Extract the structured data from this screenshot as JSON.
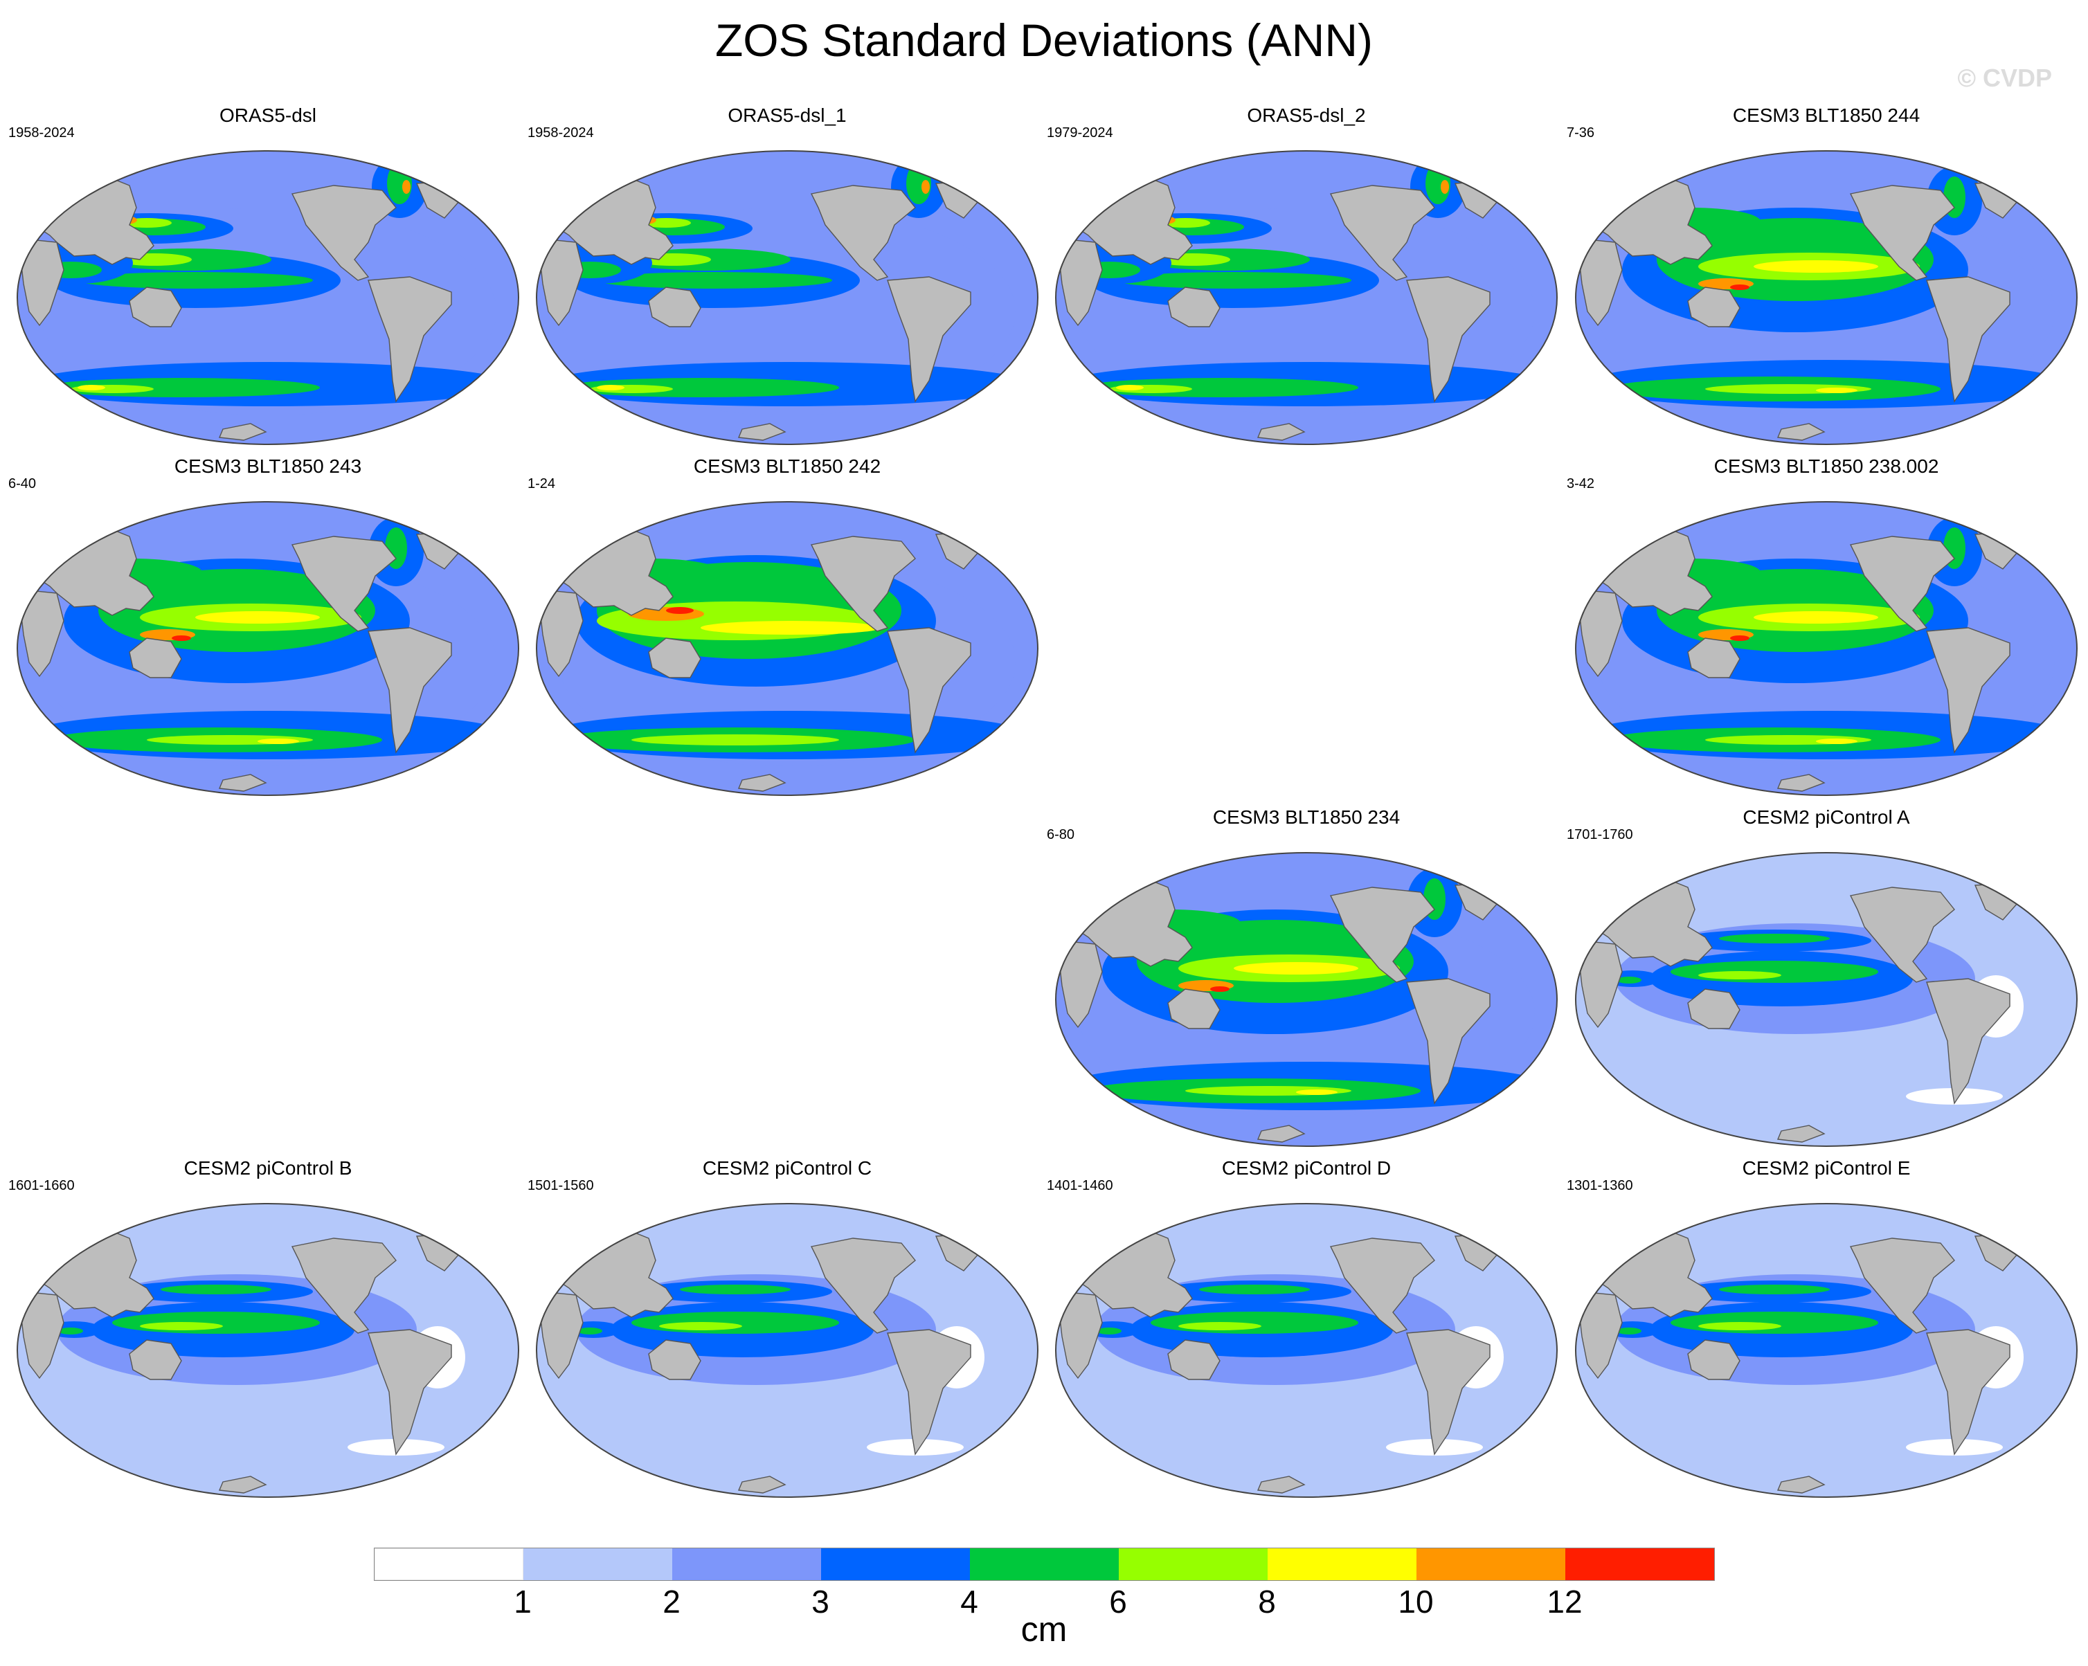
{
  "title": "ZOS Standard Deviations (ANN)",
  "watermark": "© CVDP",
  "colors": {
    "land": "#bdbdbd",
    "coast": "#555555"
  },
  "panels": [
    {
      "title": "ORAS5-dsl",
      "years": "1958-2024",
      "row": 0,
      "col": 0,
      "pattern": "obs"
    },
    {
      "title": "ORAS5-dsl_1",
      "years": "1958-2024",
      "row": 0,
      "col": 1,
      "pattern": "obs"
    },
    {
      "title": "ORAS5-dsl_2",
      "years": "1979-2024",
      "row": 0,
      "col": 2,
      "pattern": "obs"
    },
    {
      "title": "CESM3 BLT1850 244",
      "years": "7-36",
      "row": 0,
      "col": 3,
      "pattern": "cesm3"
    },
    {
      "title": "CESM3 BLT1850 243",
      "years": "6-40",
      "row": 1,
      "col": 0,
      "pattern": "cesm3"
    },
    {
      "title": "CESM3 BLT1850 242",
      "years": "1-24",
      "row": 1,
      "col": 1,
      "pattern": "cesm3hi"
    },
    {
      "title": "CESM3 BLT1850 238.002",
      "years": "3-42",
      "row": 1,
      "col": 3,
      "pattern": "cesm3"
    },
    {
      "title": "CESM3 BLT1850 234",
      "years": "6-80",
      "row": 2,
      "col": 2,
      "pattern": "cesm3"
    },
    {
      "title": "CESM2 piControl A",
      "years": "1701-1760",
      "row": 2,
      "col": 3,
      "pattern": "cesm2"
    },
    {
      "title": "CESM2 piControl B",
      "years": "1601-1660",
      "row": 3,
      "col": 0,
      "pattern": "cesm2"
    },
    {
      "title": "CESM2 piControl C",
      "years": "1501-1560",
      "row": 3,
      "col": 1,
      "pattern": "cesm2"
    },
    {
      "title": "CESM2 piControl D",
      "years": "1401-1460",
      "row": 3,
      "col": 2,
      "pattern": "cesm2"
    },
    {
      "title": "CESM2 piControl E",
      "years": "1301-1360",
      "row": 3,
      "col": 3,
      "pattern": "cesm2"
    }
  ],
  "colorbar": {
    "colors": [
      "#ffffff",
      "#b4c8fa",
      "#7d96fa",
      "#0064ff",
      "#00c83c",
      "#96ff00",
      "#ffff00",
      "#ff9600",
      "#ff1e00"
    ],
    "tick_labels": [
      "1",
      "2",
      "3",
      "4",
      "6",
      "8",
      "10",
      "12"
    ],
    "units": "cm"
  }
}
